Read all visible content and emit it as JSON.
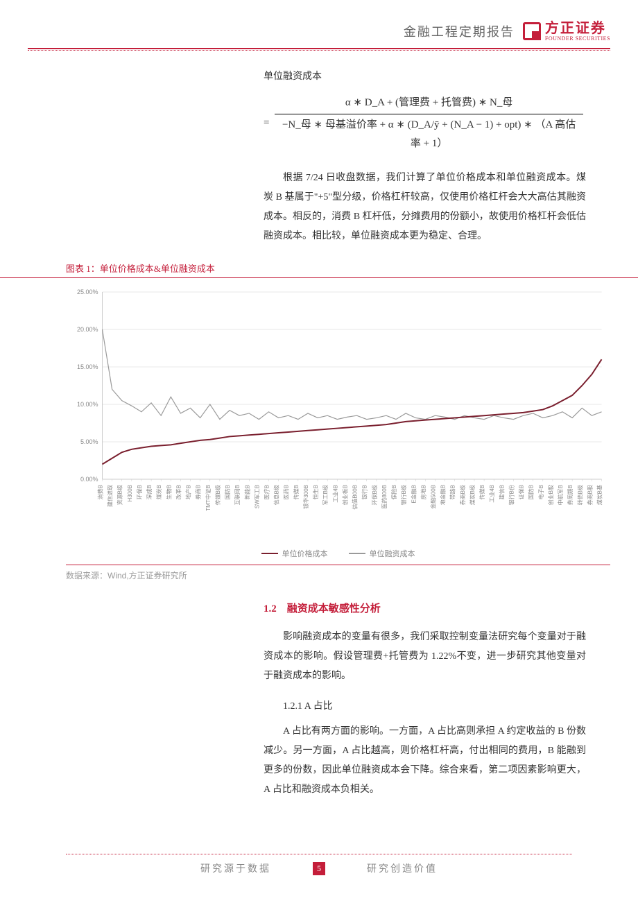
{
  "header": {
    "title": "金融工程定期报告",
    "logo_cn": "方正证券",
    "logo_en": "FOUNDER SECURITIES"
  },
  "formula": {
    "title": "单位融资成本",
    "numerator": "α ∗ D_A + (管理费 + 托管费) ∗ N_母",
    "denominator": "−N_母 ∗ 母基溢价率 + α ∗ (D_A/ȳ + (N_A − 1) + opt) ∗ （A 高估率 + 1）"
  },
  "paragraph1": "根据 7/24 日收盘数据，我们计算了单位价格成本和单位融资成本。煤炭 B 基属于\"+5\"型分级，价格杠杆较高，仅使用价格杠杆会大大高估其融资成本。相反的，消费 B 杠杆低，分摊费用的份额小，故使用价格杠杆会低估融资成本。相比较，单位融资成本更为稳定、合理。",
  "chart": {
    "title": "图表 1：单位价格成本&单位融资成本",
    "type": "line",
    "ylim": [
      0,
      25
    ],
    "ytick_step": 5,
    "ytick_labels": [
      "0.00%",
      "5.00%",
      "10.00%",
      "15.00%",
      "20.00%",
      "25.00%"
    ],
    "colors": {
      "series1": "#7a1f2e",
      "series2": "#9a9a9a",
      "grid": "#d0d0d0",
      "axis": "#cccccc",
      "background": "#ffffff"
    },
    "line_width_series1": 2,
    "line_width_series2": 1.2,
    "categories": [
      "消费B",
      "建信进取",
      "资源B级",
      "H300B",
      "环保B",
      "深成B",
      "煤炭B",
      "生物B",
      "改革B",
      "地产B",
      "券商B",
      "TMT中证B",
      "传媒B级",
      "国防B",
      "互联网B",
      "新能B",
      "SW军工B",
      "医疗B",
      "信息B级",
      "医药B",
      "传媒B",
      "银华300B",
      "恒生B",
      "军工B级",
      "工业4B",
      "创业板B",
      "估值B00B",
      "银行B",
      "环保B级",
      "医药800B",
      "保险B",
      "银行B级",
      "E金融B",
      "房地B",
      "金融500B",
      "地金融B",
      "带路B",
      "券商B级",
      "煤炭B级",
      "传媒B",
      "工业4B",
      "建信B",
      "银行B份",
      "证保B",
      "国防B",
      "电子B",
      "创业B股",
      "中航军B",
      "券周期B",
      "转债B级",
      "券商B股",
      "煤炭B基"
    ],
    "series1_values": [
      2.0,
      2.8,
      3.6,
      4.0,
      4.2,
      4.4,
      4.5,
      4.6,
      4.8,
      5.0,
      5.2,
      5.3,
      5.5,
      5.7,
      5.8,
      5.9,
      6.0,
      6.1,
      6.2,
      6.3,
      6.4,
      6.5,
      6.6,
      6.7,
      6.8,
      6.9,
      7.0,
      7.1,
      7.2,
      7.3,
      7.5,
      7.7,
      7.8,
      7.9,
      8.0,
      8.1,
      8.2,
      8.3,
      8.4,
      8.5,
      8.6,
      8.7,
      8.8,
      8.9,
      9.1,
      9.3,
      9.8,
      10.5,
      11.2,
      12.5,
      14.0,
      16.0
    ],
    "series2_values": [
      20.0,
      12.0,
      10.5,
      9.8,
      9.0,
      10.2,
      8.5,
      11.0,
      8.8,
      9.5,
      8.2,
      10.0,
      8.0,
      9.2,
      8.5,
      8.8,
      8.0,
      9.0,
      8.2,
      8.5,
      8.0,
      8.8,
      8.2,
      8.5,
      8.0,
      8.3,
      8.5,
      8.0,
      8.2,
      8.5,
      8.0,
      8.8,
      8.2,
      8.0,
      8.5,
      8.3,
      8.0,
      8.5,
      8.2,
      8.0,
      8.5,
      8.2,
      8.0,
      8.5,
      8.8,
      8.2,
      8.5,
      9.0,
      8.2,
      9.5,
      8.5,
      9.0
    ],
    "legend": [
      "单位价格成本",
      "单位融资成本"
    ]
  },
  "source": "数据来源：Wind,方正证券研究所",
  "section12": {
    "heading": "1.2　融资成本敏感性分析",
    "paragraph": "影响融资成本的变量有很多，我们采取控制变量法研究每个变量对于融资成本的影响。假设管理费+托管费为 1.22%不变，进一步研究其他变量对于融资成本的影响。",
    "sub_heading": "1.2.1 A 占比",
    "sub_paragraph": "A 占比有两方面的影响。一方面，A 占比高则承担 A 约定收益的 B 份数减少。另一方面，A 占比越高，则价格杠杆高，付出相同的费用，B 能融到更多的份数，因此单位融资成本会下降。综合来看，第二项因素影响更大，A 占比和融资成本负相关。"
  },
  "footer": {
    "left": "研究源于数据",
    "page": "5",
    "right": "研究创造价值"
  }
}
